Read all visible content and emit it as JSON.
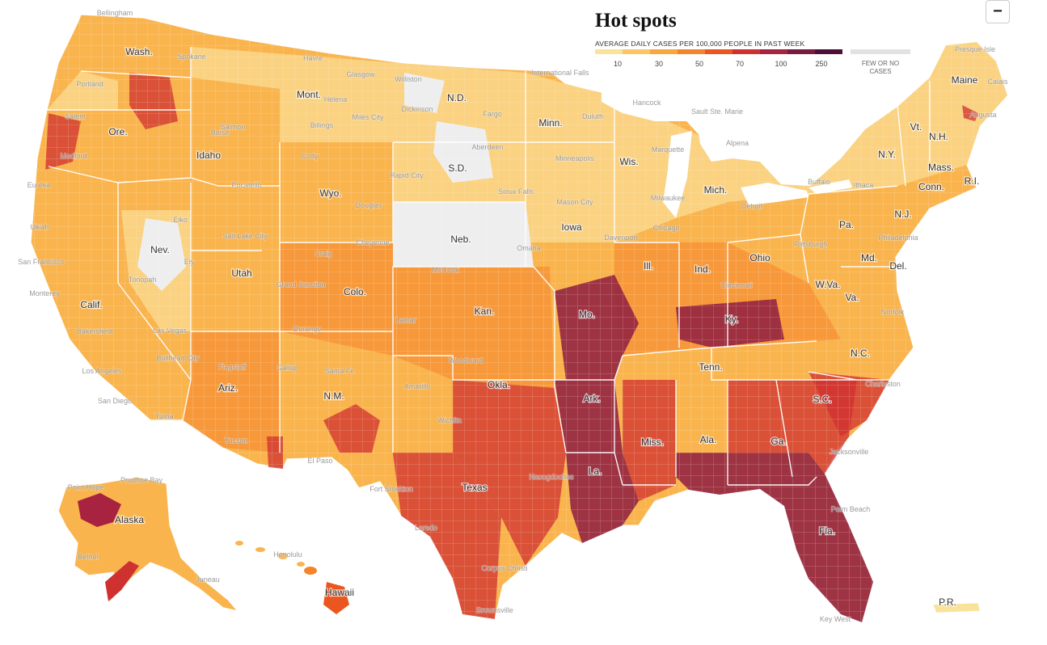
{
  "legend": {
    "title": "Hot spots",
    "subtitle": "AVERAGE DAILY CASES PER 100,000 PEOPLE IN PAST WEEK",
    "ticks": [
      "10",
      "30",
      "50",
      "70",
      "100",
      "250"
    ],
    "no_cases_label": "FEW OR NO CASES",
    "colors": [
      "#f9e39b",
      "#fbc466",
      "#f9a63c",
      "#f5832b",
      "#e9561f",
      "#cf3030",
      "#a82340",
      "#7a1a42",
      "#4e1038"
    ],
    "no_cases_color": "#e2e2e2"
  },
  "zoom": {
    "label": "−"
  },
  "map": {
    "land_color": "#f9b44e",
    "hot_color": "#a82340",
    "no_cases_color": "#eeeeee",
    "border_color": "#ffffff"
  },
  "states": [
    "Wash.",
    "Ore.",
    "Calif.",
    "Idaho",
    "Nev.",
    "Mont.",
    "Wyo.",
    "Utah",
    "Ariz.",
    "Colo.",
    "N.M.",
    "N.D.",
    "S.D.",
    "Neb.",
    "Kan.",
    "Okla.",
    "Texas",
    "Minn.",
    "Iowa",
    "Mo.",
    "Ark.",
    "La.",
    "Wis.",
    "Ill.",
    "Mich.",
    "Ind.",
    "Ohio",
    "Ky.",
    "Tenn.",
    "Miss.",
    "Ala.",
    "Ga.",
    "Fla.",
    "S.C.",
    "N.C.",
    "Va.",
    "W.Va.",
    "Pa.",
    "N.Y.",
    "Md.",
    "Del.",
    "N.J.",
    "Conn.",
    "R.I.",
    "Mass.",
    "Vt.",
    "N.H.",
    "Maine",
    "Alaska",
    "Hawaii",
    "P.R."
  ],
  "cities": [
    "Bellingham",
    "Spokane",
    "Portland",
    "Salem",
    "Medford",
    "Eureka",
    "Ukiah",
    "San Francisco",
    "Monterey",
    "Bakersfield",
    "Los Angeles",
    "San Diego",
    "Yuma",
    "Las Vegas",
    "Bullhead City",
    "Flagstaff",
    "Tucson",
    "Tonopah",
    "Ely",
    "Elko",
    "Boise",
    "Salmon",
    "Pocatello",
    "Salt Lake City",
    "Grand Junction",
    "Craig",
    "Durango",
    "Gallup",
    "Santa Fe",
    "El Paso",
    "Fort Stockton",
    "Laredo",
    "Brownsville",
    "Corpus Christi",
    "Nacogdoches",
    "Amarillo",
    "Wichita",
    "Woodward",
    "Lamar",
    "McCook",
    "Omaha",
    "Sioux Falls",
    "Aberdeen",
    "Rapid City",
    "Douglas",
    "Cody",
    "Cheyenne",
    "Billings",
    "Helena",
    "Havre",
    "Glasgow",
    "Miles City",
    "Williston",
    "Dickinson",
    "Fargo",
    "International Falls",
    "Duluth",
    "Minneapolis",
    "Mason City",
    "Davenport",
    "Chicago",
    "Milwaukee",
    "Marquette",
    "Hancock",
    "Sault Ste. Marie",
    "Alpena",
    "Detroit",
    "Cincinnati",
    "Pittsburgh",
    "Philadelphia",
    "Buffalo",
    "Ithaca",
    "Augusta",
    "Presque Isle",
    "Calais",
    "Norfolk",
    "Charleston",
    "Jacksonville",
    "Palm Beach",
    "Key West",
    "Point Hope",
    "Prudhoe Bay",
    "Bethel",
    "Juneau",
    "Honolulu"
  ]
}
